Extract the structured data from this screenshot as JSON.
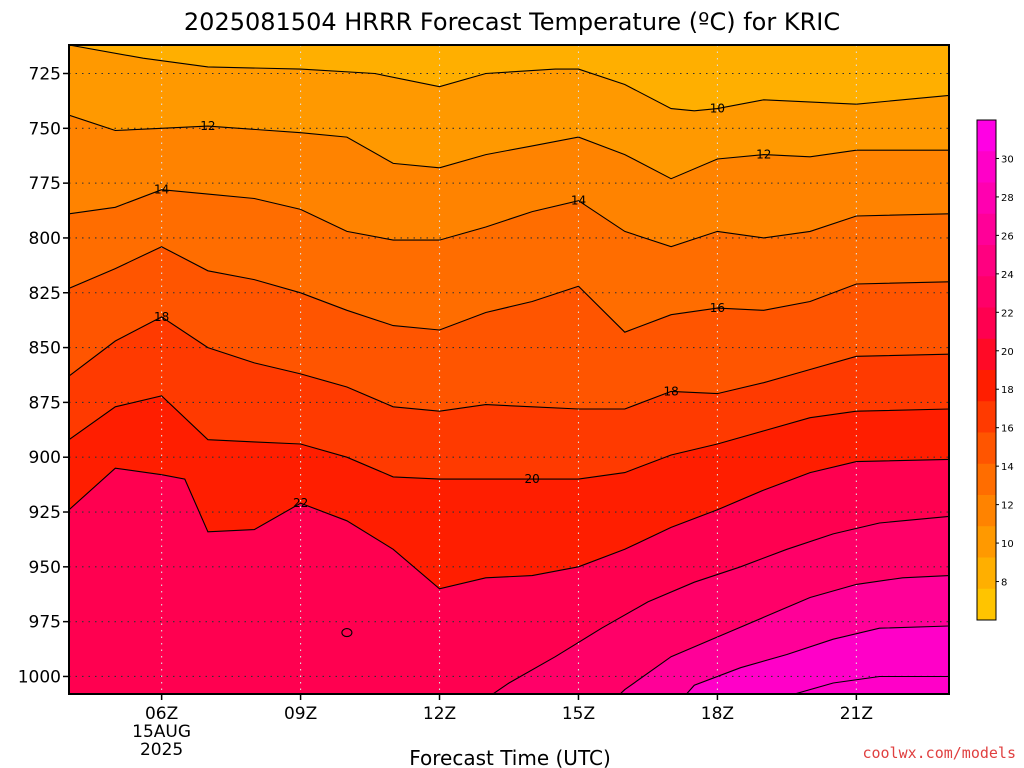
{
  "title": "2025081504 HRRR Forecast Temperature (ºC) for KRIC",
  "credit": "coolwx.com/models",
  "chart_data": {
    "type": "contour",
    "title": "2025081504 HRRR Forecast Temperature (ºC) for KRIC",
    "xlabel": "Forecast Time (UTC)",
    "ylabel": "",
    "x_unit": "forecast hour (UTC, 15 AUG 2025)",
    "y_unit": "pressure (hPa)",
    "x_range": [
      4,
      23
    ],
    "y_range": [
      1008,
      712
    ],
    "x_ticks": [
      {
        "hour": 6,
        "label": "06Z",
        "sub": [
          "15AUG",
          "2025"
        ]
      },
      {
        "hour": 9,
        "label": "09Z",
        "sub": []
      },
      {
        "hour": 12,
        "label": "12Z",
        "sub": []
      },
      {
        "hour": 15,
        "label": "15Z",
        "sub": []
      },
      {
        "hour": 18,
        "label": "18Z",
        "sub": []
      },
      {
        "hour": 21,
        "label": "21Z",
        "sub": []
      }
    ],
    "y_ticks": [
      725,
      750,
      775,
      800,
      825,
      850,
      875,
      900,
      925,
      950,
      975,
      1000
    ],
    "grid": "dotted",
    "ground_top_hpa": 1016.5,
    "colorbar": {
      "ticks": [
        8,
        10,
        12,
        14,
        16,
        18,
        20,
        22,
        24,
        26,
        28,
        30
      ],
      "min": 6,
      "max": 32,
      "colors": [
        "#ffc400",
        "#ffaf00",
        "#ff9900",
        "#ff8300",
        "#ff6d00",
        "#ff5500",
        "#ff3a00",
        "#ff1e00",
        "#ff0a26",
        "#ff0050",
        "#ff0068",
        "#ff0080",
        "#ff0098",
        "#ff00b0",
        "#ff00c8",
        "#ff00e4"
      ]
    },
    "fill_bands": [
      {
        "range": "<=10",
        "color": "#ffaf00"
      },
      {
        "range": "10-12",
        "color": "#ff9900"
      },
      {
        "range": "12-14",
        "color": "#ff8300"
      },
      {
        "range": "14-16",
        "color": "#ff6d00"
      },
      {
        "range": "16-18",
        "color": "#ff5500"
      },
      {
        "range": "18-20",
        "color": "#ff3a00"
      },
      {
        "range": "20-22",
        "color": "#ff1e00"
      },
      {
        "range": "22-24",
        "color": "#ff0050"
      },
      {
        "range": "24-26",
        "color": "#ff0068"
      },
      {
        "range": "26-28",
        "color": "#ff0098"
      },
      {
        "range": "28-30",
        "color": "#ff00c8"
      }
    ],
    "contours": [
      {
        "level": 10,
        "points": [
          [
            4,
            712
          ],
          [
            5.6,
            718
          ],
          [
            7,
            722
          ],
          [
            9,
            723
          ],
          [
            10.6,
            725
          ],
          [
            12,
            731
          ],
          [
            13,
            725
          ],
          [
            14.5,
            723
          ],
          [
            15,
            723
          ],
          [
            16,
            730
          ],
          [
            17,
            741
          ],
          [
            17.5,
            742
          ],
          [
            18,
            741
          ],
          [
            19,
            737
          ],
          [
            21,
            739
          ],
          [
            23,
            735
          ]
        ]
      },
      {
        "level": 12,
        "points": [
          [
            4,
            744
          ],
          [
            5,
            751
          ],
          [
            6,
            750
          ],
          [
            7,
            749
          ],
          [
            9,
            752
          ],
          [
            10,
            754
          ],
          [
            11,
            766
          ],
          [
            12,
            768
          ],
          [
            13,
            762
          ],
          [
            14,
            758
          ],
          [
            15,
            754
          ],
          [
            16,
            762
          ],
          [
            17,
            773
          ],
          [
            18,
            764
          ],
          [
            19,
            762
          ],
          [
            20,
            763
          ],
          [
            21,
            760
          ],
          [
            23,
            760
          ]
        ]
      },
      {
        "level": 14,
        "points": [
          [
            4,
            789
          ],
          [
            5,
            786
          ],
          [
            6,
            778
          ],
          [
            7,
            780
          ],
          [
            8,
            782
          ],
          [
            9,
            787
          ],
          [
            10,
            797
          ],
          [
            11,
            801
          ],
          [
            12,
            801
          ],
          [
            13,
            795
          ],
          [
            14,
            788
          ],
          [
            15,
            783
          ],
          [
            16,
            797
          ],
          [
            17,
            804
          ],
          [
            18,
            797
          ],
          [
            19,
            800
          ],
          [
            20,
            797
          ],
          [
            21,
            790
          ],
          [
            23,
            789
          ]
        ]
      },
      {
        "level": 16,
        "points": [
          [
            4,
            823
          ],
          [
            5,
            814
          ],
          [
            6,
            804
          ],
          [
            7,
            815
          ],
          [
            8,
            819
          ],
          [
            9,
            825
          ],
          [
            10,
            833
          ],
          [
            11,
            840
          ],
          [
            12,
            842
          ],
          [
            13,
            834
          ],
          [
            14,
            829
          ],
          [
            15,
            822
          ],
          [
            16,
            843
          ],
          [
            17,
            835
          ],
          [
            18,
            832
          ],
          [
            19,
            833
          ],
          [
            20,
            829
          ],
          [
            21,
            821
          ],
          [
            23,
            820
          ]
        ]
      },
      {
        "level": 18,
        "points": [
          [
            4,
            863
          ],
          [
            5,
            847
          ],
          [
            6,
            836
          ],
          [
            7,
            850
          ],
          [
            8,
            857
          ],
          [
            9,
            862
          ],
          [
            10,
            868
          ],
          [
            11,
            877
          ],
          [
            12,
            879
          ],
          [
            13,
            876
          ],
          [
            14,
            877
          ],
          [
            15,
            878
          ],
          [
            16,
            878
          ],
          [
            17,
            870
          ],
          [
            18,
            871
          ],
          [
            19,
            866
          ],
          [
            20,
            860
          ],
          [
            21,
            854
          ],
          [
            23,
            853
          ]
        ]
      },
      {
        "level": 20,
        "points": [
          [
            4,
            892
          ],
          [
            5,
            877
          ],
          [
            6,
            872
          ],
          [
            7,
            892
          ],
          [
            8,
            893
          ],
          [
            9,
            894
          ],
          [
            10,
            900
          ],
          [
            11,
            909
          ],
          [
            12,
            910
          ],
          [
            13,
            910
          ],
          [
            14,
            910
          ],
          [
            15,
            910
          ],
          [
            16,
            907
          ],
          [
            17,
            899
          ],
          [
            18,
            894
          ],
          [
            19,
            888
          ],
          [
            20,
            882
          ],
          [
            21,
            879
          ],
          [
            23,
            878
          ]
        ]
      },
      {
        "level": 22,
        "points": [
          [
            4,
            924
          ],
          [
            5,
            905
          ],
          [
            6,
            908
          ],
          [
            6.5,
            910
          ],
          [
            7,
            934
          ],
          [
            8,
            933
          ],
          [
            9,
            921
          ],
          [
            10,
            929
          ],
          [
            11,
            942
          ],
          [
            12,
            960
          ],
          [
            13,
            955
          ],
          [
            14,
            954
          ],
          [
            15,
            950
          ],
          [
            16,
            942
          ],
          [
            17,
            932
          ],
          [
            18,
            924
          ],
          [
            19,
            915
          ],
          [
            20,
            907
          ],
          [
            21,
            902
          ],
          [
            23,
            901
          ]
        ]
      },
      {
        "level": 24,
        "points": [
          [
            12.6,
            1016
          ],
          [
            13.5,
            1003
          ],
          [
            14.5,
            991
          ],
          [
            15.5,
            978
          ],
          [
            16.5,
            966
          ],
          [
            17.5,
            957
          ],
          [
            18.5,
            950
          ],
          [
            19.5,
            942
          ],
          [
            20.5,
            935
          ],
          [
            21.5,
            930
          ],
          [
            23,
            927
          ]
        ]
      },
      {
        "level": 26,
        "points": [
          [
            15.5,
            1016
          ],
          [
            16,
            1006
          ],
          [
            17,
            991
          ],
          [
            18,
            982
          ],
          [
            19,
            973
          ],
          [
            20,
            964
          ],
          [
            21,
            958
          ],
          [
            22,
            955
          ],
          [
            23,
            954
          ]
        ]
      },
      {
        "level": 28,
        "points": [
          [
            17,
            1016
          ],
          [
            17.5,
            1004
          ],
          [
            18.5,
            996
          ],
          [
            19.5,
            990
          ],
          [
            20.5,
            983
          ],
          [
            21.5,
            978
          ],
          [
            23,
            977
          ]
        ]
      },
      {
        "level": 30,
        "points": [
          [
            18.5,
            1016
          ],
          [
            19.5,
            1009
          ],
          [
            20.5,
            1003
          ],
          [
            21.5,
            1000
          ],
          [
            23,
            1000
          ]
        ]
      }
    ],
    "contour_labels": [
      {
        "text": "10",
        "x": 18,
        "y": 741
      },
      {
        "text": "12",
        "x": 7,
        "y": 749
      },
      {
        "text": "12",
        "x": 19,
        "y": 762
      },
      {
        "text": "14",
        "x": 6,
        "y": 778
      },
      {
        "text": "14",
        "x": 15,
        "y": 783
      },
      {
        "text": "16",
        "x": 18,
        "y": 832
      },
      {
        "text": "18",
        "x": 6,
        "y": 836
      },
      {
        "text": "18",
        "x": 17,
        "y": 870
      },
      {
        "text": "20",
        "x": 14,
        "y": 910
      },
      {
        "text": "22",
        "x": 9,
        "y": 921
      }
    ],
    "small_contour": {
      "level": 22,
      "x": 10,
      "y": 980
    }
  }
}
